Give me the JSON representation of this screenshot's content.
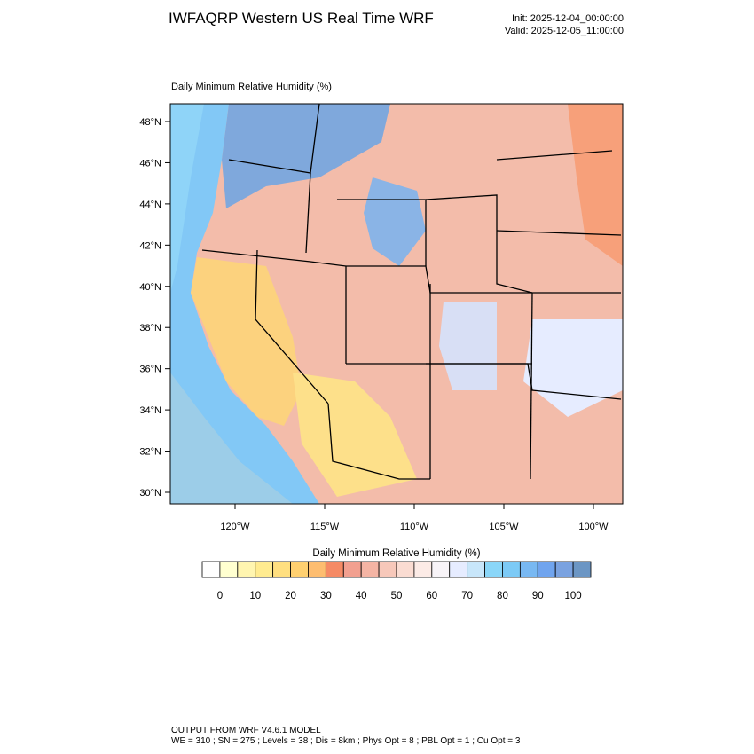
{
  "header": {
    "title": "IWFAQRP Western US Real Time WRF",
    "init": "Init: 2025-12-04_00:00:00",
    "valid": "Valid: 2025-12-05_11:00:00"
  },
  "map": {
    "title": "Daily Minimum Relative Humidity   (%)",
    "lat_ticks": [
      {
        "value": 30,
        "label": "30°N"
      },
      {
        "value": 32,
        "label": "32°N"
      },
      {
        "value": 34,
        "label": "34°N"
      },
      {
        "value": 36,
        "label": "36°N"
      },
      {
        "value": 38,
        "label": "38°N"
      },
      {
        "value": 40,
        "label": "40°N"
      },
      {
        "value": 42,
        "label": "42°N"
      },
      {
        "value": 44,
        "label": "44°N"
      },
      {
        "value": 46,
        "label": "46°N"
      },
      {
        "value": 48,
        "label": "48°N"
      }
    ],
    "lon_ticks": [
      {
        "value": -120,
        "label": "120°W"
      },
      {
        "value": -115,
        "label": "115°W"
      },
      {
        "value": -110,
        "label": "110°W"
      },
      {
        "value": -105,
        "label": "105°W"
      },
      {
        "value": -100,
        "label": "100°W"
      }
    ]
  },
  "colorbar": {
    "title": "Daily Minimum Relative Humidity  (%)",
    "colors": [
      "#ffffff",
      "#ffffd0",
      "#fff5b0",
      "#ffeb90",
      "#ffdf80",
      "#ffd070",
      "#fdbd70",
      "#f58a65",
      "#f2a090",
      "#f4b4a4",
      "#f7c8ba",
      "#fadcd2",
      "#fcebe6",
      "#f8f4f8",
      "#e6ecff",
      "#c8e6fa",
      "#8ad6f8",
      "#7ccaf6",
      "#78b8f2",
      "#70a4ee",
      "#7aa2e0",
      "#6c96c4"
    ],
    "ticks": [
      0,
      10,
      20,
      30,
      40,
      50,
      60,
      70,
      80,
      90,
      100
    ]
  },
  "footer": {
    "line1": "OUTPUT FROM WRF V4.6.1 MODEL",
    "line2": "WE = 310 ; SN = 275 ; Levels = 38 ; Dis = 8km ; Phys Opt = 8 ; PBL Opt = 1 ; Cu Opt = 3"
  }
}
